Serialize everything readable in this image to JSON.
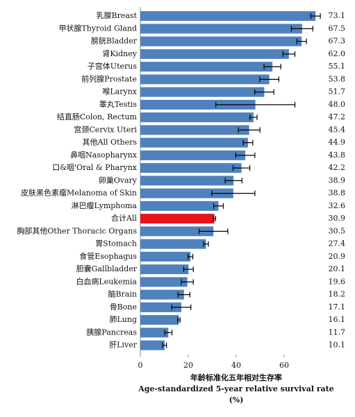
{
  "chart_data": {
    "type": "bar",
    "orientation": "horizontal",
    "categories": [
      "乳腺Breast",
      "甲状腺Thyroid Gland",
      "膀胱Bladder",
      "肾Kidney",
      "子宫体Uterus",
      "前列腺Prostate",
      "喉Larynx",
      "睾丸Testis",
      "结直肠Colon, Rectum",
      "宫颈Cervix Uteri",
      "其他All Others",
      "鼻咽Nasopharynx",
      "口&咽'Oral & Pharynx",
      "卵巢Ovary",
      "皮肤黑色素瘤Melanoma of Skin",
      "淋巴瘤Lymphoma",
      "合计All",
      "胸部其他Other Thoracic Organs",
      "胃Stomach",
      "食管Esophagus",
      "胆囊Gallbladder",
      "白血病Leukemia",
      "脑Brain",
      "骨Bone",
      "肺Lung",
      "胰腺Pancreas",
      "肝Liver"
    ],
    "values": [
      73.1,
      67.5,
      67.3,
      62.0,
      55.1,
      53.8,
      51.7,
      48.0,
      47.2,
      45.4,
      44.9,
      43.8,
      42.2,
      38.9,
      38.8,
      32.6,
      30.9,
      30.5,
      27.4,
      20.9,
      20.1,
      19.6,
      18.2,
      17.1,
      16.1,
      11.7,
      10.1
    ],
    "value_labels": [
      "73.1",
      "67.5",
      "67.3",
      "62.0",
      "55.1",
      "53.8",
      "51.7",
      "48.0",
      "47.2",
      "45.4",
      "44.9",
      "43.8",
      "42.2",
      "38.9",
      "38.8",
      "32.6",
      "30.9",
      "30.5",
      "27.4",
      "20.9",
      "20.1",
      "19.6",
      "18.2",
      "17.1",
      "16.1",
      "11.7",
      "10.1"
    ],
    "errors": [
      2,
      4.5,
      2,
      2.5,
      3.5,
      4,
      4,
      16.5,
      1.5,
      4.5,
      2,
      4,
      3.5,
      3.5,
      9,
      2,
      0.5,
      6,
      1,
      1,
      2,
      2.5,
      2.5,
      4,
      0.5,
      1.5,
      0.8
    ],
    "colors": [
      "#4f81bd",
      "#4f81bd",
      "#4f81bd",
      "#4f81bd",
      "#4f81bd",
      "#4f81bd",
      "#4f81bd",
      "#4f81bd",
      "#4f81bd",
      "#4f81bd",
      "#4f81bd",
      "#4f81bd",
      "#4f81bd",
      "#4f81bd",
      "#4f81bd",
      "#4f81bd",
      "#e8141a",
      "#4f81bd",
      "#4f81bd",
      "#4f81bd",
      "#4f81bd",
      "#4f81bd",
      "#4f81bd",
      "#4f81bd",
      "#4f81bd",
      "#4f81bd",
      "#4f81bd"
    ],
    "xlim": [
      0,
      80
    ],
    "xticks": [
      0,
      20,
      40,
      60
    ],
    "x_label": [
      "年龄标准化五年相对生存率",
      "Age-standardized 5-year relative survival rate",
      "(%)"
    ]
  }
}
